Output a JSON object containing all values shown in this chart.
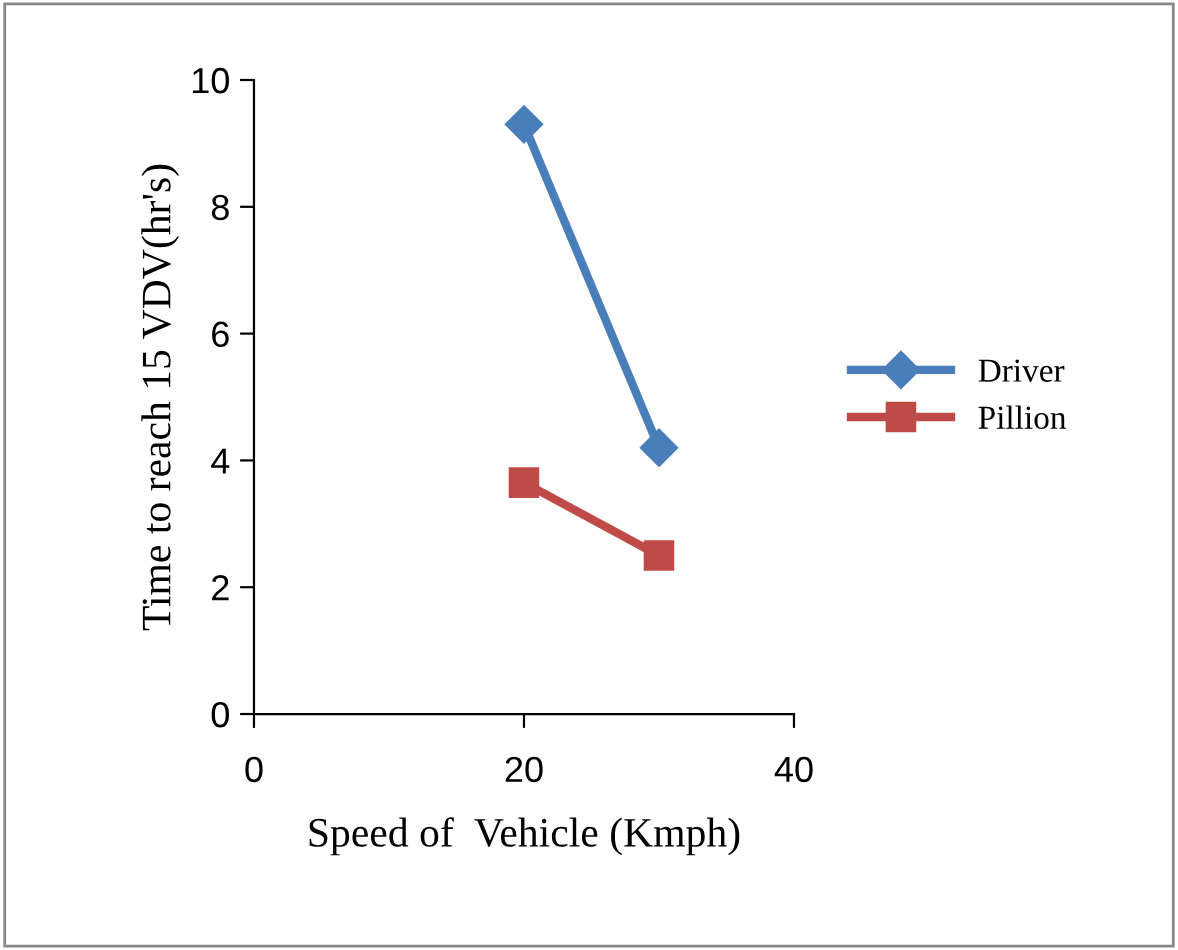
{
  "chart_data": {
    "type": "line",
    "xlabel": "Speed of  Vehicle (Kmph)",
    "ylabel": "Time to reach 15 VDV(hr's)",
    "x": [
      20,
      30
    ],
    "series": [
      {
        "name": "Driver",
        "color": "#4a7ebb",
        "values": [
          9.3,
          4.2
        ],
        "marker": "diamond"
      },
      {
        "name": "Pillion",
        "color": "#be4b48",
        "values": [
          3.65,
          2.5
        ],
        "marker": "square"
      }
    ],
    "xlim": [
      0,
      40
    ],
    "xticks": [
      0,
      20,
      40
    ],
    "ylim": [
      0,
      10
    ],
    "yticks": [
      0,
      2,
      4,
      6,
      8,
      10
    ],
    "grid": false,
    "legend": "right",
    "line_style": "solid"
  }
}
